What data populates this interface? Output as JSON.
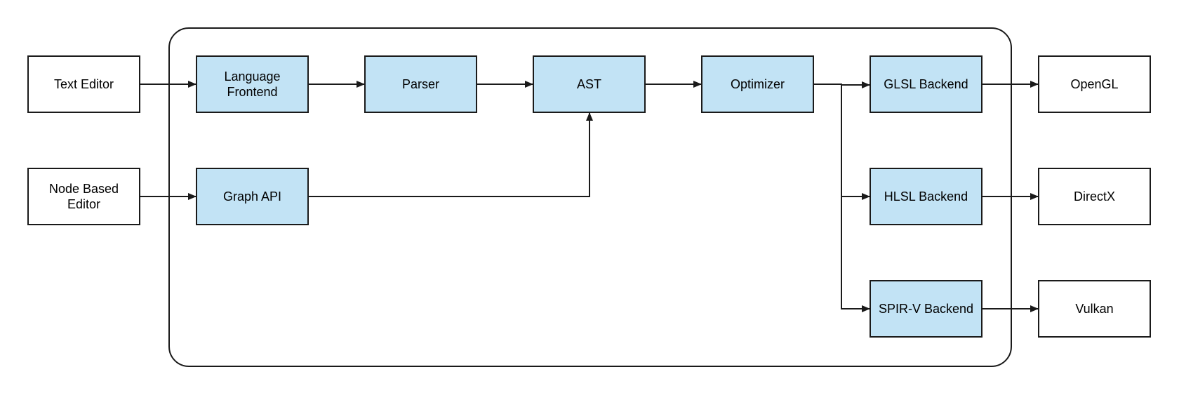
{
  "nodes": {
    "text_editor": "Text Editor",
    "node_based_editor": "Node Based\nEditor",
    "language_frontend": "Language\nFrontend",
    "graph_api": "Graph API",
    "parser": "Parser",
    "ast": "AST",
    "optimizer": "Optimizer",
    "glsl_backend": "GLSL Backend",
    "hlsl_backend": "HLSL Backend",
    "spirv_backend": "SPIR-V Backend",
    "opengl": "OpenGL",
    "directx": "DirectX",
    "vulkan": "Vulkan"
  },
  "colors": {
    "internal_fill": "#c2e3f5",
    "external_fill": "#ffffff",
    "stroke": "#1a1a1a"
  },
  "edges": [
    [
      "text_editor",
      "language_frontend"
    ],
    [
      "node_based_editor",
      "graph_api"
    ],
    [
      "language_frontend",
      "parser"
    ],
    [
      "parser",
      "ast"
    ],
    [
      "graph_api",
      "ast"
    ],
    [
      "ast",
      "optimizer"
    ],
    [
      "optimizer",
      "glsl_backend"
    ],
    [
      "optimizer",
      "hlsl_backend"
    ],
    [
      "optimizer",
      "spirv_backend"
    ],
    [
      "glsl_backend",
      "opengl"
    ],
    [
      "hlsl_backend",
      "directx"
    ],
    [
      "spirv_backend",
      "vulkan"
    ]
  ]
}
